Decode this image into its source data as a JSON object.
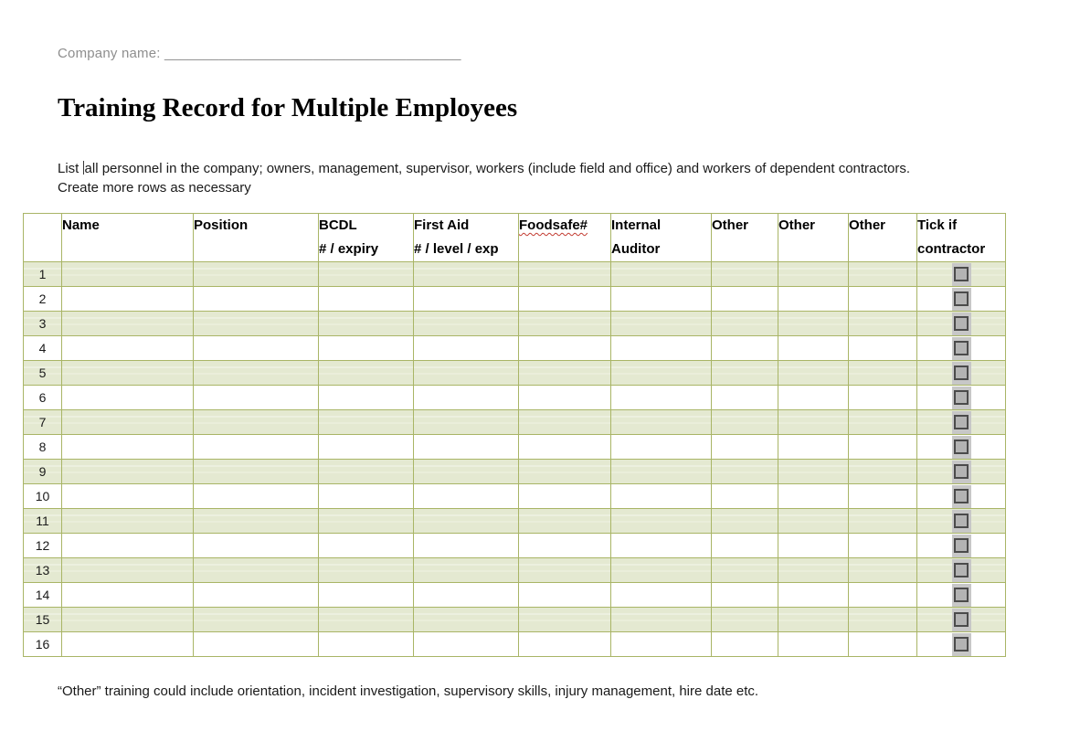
{
  "page": {
    "company_label": "Company name:",
    "company_blank": "______________________________________",
    "title": "Training Record for Multiple Employees",
    "intro_before_caret": "List ",
    "intro_after_caret": "all personnel in the company; owners, management, supervisor, workers (include field and office) and workers of dependent contractors. Create more rows as necessary",
    "footnote": "“Other” training could include orientation, incident investigation, supervisory skills, injury management, hire date etc."
  },
  "table": {
    "columns": [
      {
        "id": "num",
        "label": "",
        "sublabel": ""
      },
      {
        "id": "name",
        "label": "Name",
        "sublabel": ""
      },
      {
        "id": "position",
        "label": "Position",
        "sublabel": ""
      },
      {
        "id": "bcdl",
        "label": "BCDL",
        "sublabel": "# / expiry"
      },
      {
        "id": "first-aid",
        "label": "First Aid",
        "sublabel": "# / level / exp"
      },
      {
        "id": "foodsafe",
        "label": "Foodsafe#",
        "sublabel": "",
        "misspelled": true
      },
      {
        "id": "internal-auditor",
        "label": "Internal Auditor",
        "sublabel": ""
      },
      {
        "id": "other-1",
        "label": "Other",
        "sublabel": ""
      },
      {
        "id": "other-2",
        "label": "Other",
        "sublabel": ""
      },
      {
        "id": "other-3",
        "label": "Other",
        "sublabel": ""
      },
      {
        "id": "tick-contractor",
        "label": "Tick if contractor",
        "sublabel": ""
      }
    ],
    "data_column_ids": [
      "name",
      "position",
      "bcdl",
      "first-aid",
      "foodsafe",
      "internal-auditor",
      "other-1",
      "other-2",
      "other-3"
    ],
    "rows": [
      {
        "num": "1",
        "cells": [
          "",
          "",
          "",
          "",
          "",
          "",
          "",
          "",
          ""
        ],
        "contractor_checked": false
      },
      {
        "num": "2",
        "cells": [
          "",
          "",
          "",
          "",
          "",
          "",
          "",
          "",
          ""
        ],
        "contractor_checked": false
      },
      {
        "num": "3",
        "cells": [
          "",
          "",
          "",
          "",
          "",
          "",
          "",
          "",
          ""
        ],
        "contractor_checked": false
      },
      {
        "num": "4",
        "cells": [
          "",
          "",
          "",
          "",
          "",
          "",
          "",
          "",
          ""
        ],
        "contractor_checked": false
      },
      {
        "num": "5",
        "cells": [
          "",
          "",
          "",
          "",
          "",
          "",
          "",
          "",
          ""
        ],
        "contractor_checked": false
      },
      {
        "num": "6",
        "cells": [
          "",
          "",
          "",
          "",
          "",
          "",
          "",
          "",
          ""
        ],
        "contractor_checked": false
      },
      {
        "num": "7",
        "cells": [
          "",
          "",
          "",
          "",
          "",
          "",
          "",
          "",
          ""
        ],
        "contractor_checked": false
      },
      {
        "num": "8",
        "cells": [
          "",
          "",
          "",
          "",
          "",
          "",
          "",
          "",
          ""
        ],
        "contractor_checked": false
      },
      {
        "num": "9",
        "cells": [
          "",
          "",
          "",
          "",
          "",
          "",
          "",
          "",
          ""
        ],
        "contractor_checked": false
      },
      {
        "num": "10",
        "cells": [
          "",
          "",
          "",
          "",
          "",
          "",
          "",
          "",
          ""
        ],
        "contractor_checked": false
      },
      {
        "num": "11",
        "cells": [
          "",
          "",
          "",
          "",
          "",
          "",
          "",
          "",
          ""
        ],
        "contractor_checked": false
      },
      {
        "num": "12",
        "cells": [
          "",
          "",
          "",
          "",
          "",
          "",
          "",
          "",
          ""
        ],
        "contractor_checked": false
      },
      {
        "num": "13",
        "cells": [
          "",
          "",
          "",
          "",
          "",
          "",
          "",
          "",
          ""
        ],
        "contractor_checked": false
      },
      {
        "num": "14",
        "cells": [
          "",
          "",
          "",
          "",
          "",
          "",
          "",
          "",
          ""
        ],
        "contractor_checked": false
      },
      {
        "num": "15",
        "cells": [
          "",
          "",
          "",
          "",
          "",
          "",
          "",
          "",
          ""
        ],
        "contractor_checked": false
      },
      {
        "num": "16",
        "cells": [
          "",
          "",
          "",
          "",
          "",
          "",
          "",
          "",
          ""
        ],
        "contractor_checked": false
      }
    ]
  },
  "colors": {
    "table_border": "#a9b566",
    "table_border_thick": "#90a54a",
    "row_green": "#e4e9d1",
    "checkbox_patch": "#c7c7c7",
    "checkbox_border": "#4b4b4b",
    "checkbox_fill": "#b3b3b3",
    "label_gray": "#8e8e8e",
    "spellcheck_red": "#c23b31"
  }
}
